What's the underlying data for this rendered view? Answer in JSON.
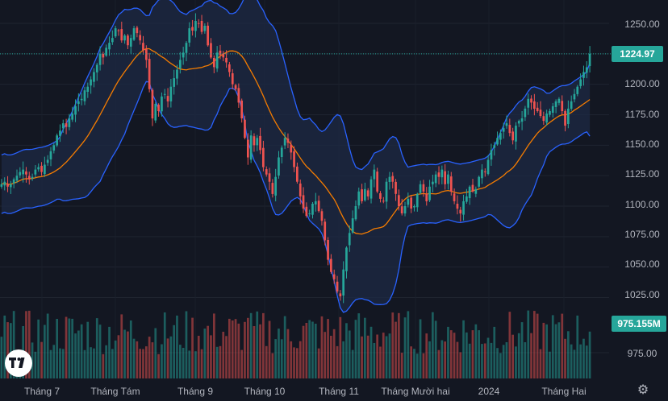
{
  "chart_data": {
    "type": "candlestick",
    "x_labels": [
      "Tháng 7",
      "Tháng Tám",
      "Tháng 9",
      "Tháng 10",
      "Tháng 11",
      "Tháng Mười hai",
      "2024",
      "Tháng Hai"
    ],
    "y_ticks": [
      "1250.00",
      "1225.00",
      "1200.00",
      "1175.00",
      "1150.00",
      "1125.00",
      "1100.00",
      "1075.00",
      "1050.00",
      "1025.00"
    ],
    "ylim": [
      1012,
      1261
    ],
    "volume_tick": "975.00",
    "last_price_label": "1224.97",
    "last_price": 1224.97,
    "last_volume_label": "975.155M",
    "colors": {
      "up": "#26a69a",
      "down": "#ef5350",
      "bands": "#2962ff",
      "basis": "#f57c00",
      "band_fill": "#1e2a44",
      "background": "#131722"
    },
    "grid": true,
    "close_series": [
      1118,
      1120,
      1116,
      1118,
      1122,
      1125,
      1128,
      1130,
      1126,
      1122,
      1124,
      1130,
      1132,
      1128,
      1134,
      1138,
      1145,
      1150,
      1158,
      1162,
      1168,
      1165,
      1172,
      1176,
      1182,
      1186,
      1188,
      1195,
      1198,
      1204,
      1210,
      1216,
      1225,
      1222,
      1230,
      1234,
      1238,
      1246,
      1244,
      1236,
      1240,
      1232,
      1238,
      1246,
      1242,
      1236,
      1228,
      1220,
      1196,
      1172,
      1184,
      1178,
      1190,
      1192,
      1186,
      1198,
      1205,
      1212,
      1220,
      1226,
      1234,
      1246,
      1244,
      1252,
      1250,
      1243,
      1248,
      1232,
      1222,
      1214,
      1226,
      1224,
      1222,
      1218,
      1210,
      1200,
      1196,
      1185,
      1172,
      1156,
      1140,
      1158,
      1150,
      1156,
      1146,
      1132,
      1126,
      1120,
      1110,
      1124,
      1140,
      1148,
      1156,
      1152,
      1144,
      1132,
      1120,
      1108,
      1098,
      1092,
      1094,
      1102,
      1104,
      1096,
      1088,
      1072,
      1056,
      1046,
      1040,
      1030,
      1026,
      1048,
      1066,
      1078,
      1090,
      1100,
      1112,
      1104,
      1114,
      1108,
      1122,
      1130,
      1112,
      1106,
      1104,
      1120,
      1124,
      1120,
      1110,
      1100,
      1094,
      1100,
      1106,
      1098,
      1100,
      1110,
      1118,
      1112,
      1104,
      1116,
      1120,
      1126,
      1124,
      1130,
      1118,
      1126,
      1112,
      1104,
      1098,
      1094,
      1104,
      1108,
      1116,
      1112,
      1114,
      1124,
      1130,
      1128,
      1138,
      1146,
      1150,
      1156,
      1160,
      1164,
      1168,
      1160,
      1154,
      1166,
      1170,
      1172,
      1180,
      1188,
      1185,
      1180,
      1178,
      1174,
      1170,
      1176,
      1178,
      1182,
      1186,
      1188,
      1178,
      1166,
      1180,
      1186,
      1192,
      1198,
      1204,
      1210,
      1214,
      1224.97
    ]
  }
}
